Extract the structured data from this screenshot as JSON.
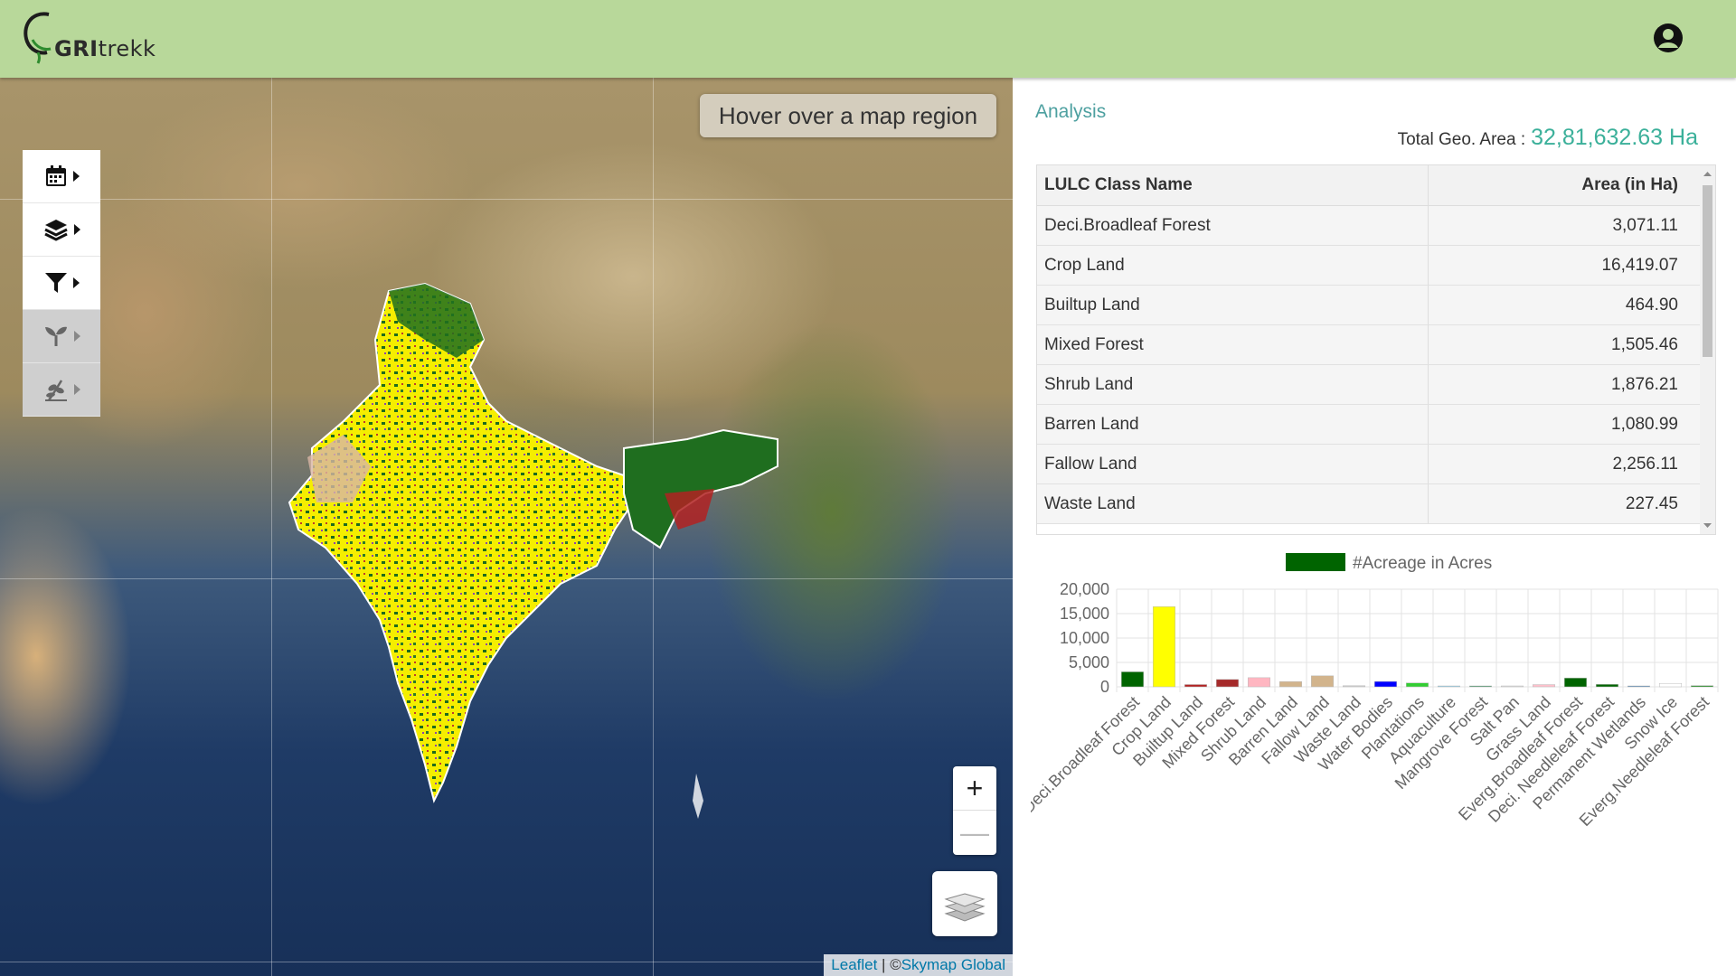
{
  "header": {
    "logo_bold": "GRI",
    "logo_rest": "trekk"
  },
  "map": {
    "hover_text": "Hover over a map region",
    "zoom_in": "+",
    "zoom_out": "—",
    "attribution_leaflet": "Leaflet",
    "attribution_sep": " | ©",
    "attribution_source": "Skymap Global",
    "toolbar": [
      "calendar-icon",
      "layers-icon",
      "filter-icon",
      "seedling-icon",
      "plant-icon"
    ]
  },
  "panel": {
    "title": "Analysis",
    "total_label": "Total Geo. Area :",
    "total_value": "32,81,632.63 Ha",
    "table": {
      "headers": [
        "LULC Class Name",
        "Area (in Ha)"
      ],
      "rows": [
        [
          "Deci.Broadleaf Forest",
          "3,071.11"
        ],
        [
          "Crop Land",
          "16,419.07"
        ],
        [
          "Builtup Land",
          "464.90"
        ],
        [
          "Mixed Forest",
          "1,505.46"
        ],
        [
          "Shrub Land",
          "1,876.21"
        ],
        [
          "Barren Land",
          "1,080.99"
        ],
        [
          "Fallow Land",
          "2,256.11"
        ],
        [
          "Waste Land",
          "227.45"
        ]
      ]
    }
  },
  "chart_data": {
    "type": "bar",
    "legend": "#Acreage in Acres",
    "legend_position": "top",
    "grid": true,
    "ylim": [
      0,
      20000
    ],
    "yticks": [
      "20,000",
      "15,000",
      "10,000",
      "5,000",
      "0"
    ],
    "categories": [
      "Deci.Broadleaf Forest",
      "Crop Land",
      "Builtup Land",
      "Mixed Forest",
      "Shrub Land",
      "Barren Land",
      "Fallow Land",
      "Waste Land",
      "Water Bodies",
      "Plantations",
      "Aquaculture",
      "Mangrove Forest",
      "Salt Pan",
      "Grass Land",
      "Everg.Broadleaf Forest",
      "Deci. Needleleaf Forest",
      "Permanent Wetlands",
      "Snow Ice",
      "Everg.Needleleaf Forest"
    ],
    "values": [
      3071.11,
      16419.07,
      464.9,
      1505.46,
      1876.21,
      1080.99,
      2256.11,
      227.45,
      1100,
      800,
      60,
      40,
      30,
      450,
      1800,
      500,
      40,
      700,
      250
    ],
    "colors": [
      "#006400",
      "#ffff00",
      "#b22222",
      "#a52a2a",
      "#ffb6c1",
      "#d2b48c",
      "#d2b48c",
      "#cccccc",
      "#0000ff",
      "#32cd32",
      "#87ceeb",
      "#2e8b57",
      "#dddddd",
      "#ffc0cb",
      "#006400",
      "#006400",
      "#4682b4",
      "#ffffff",
      "#228b22"
    ]
  }
}
